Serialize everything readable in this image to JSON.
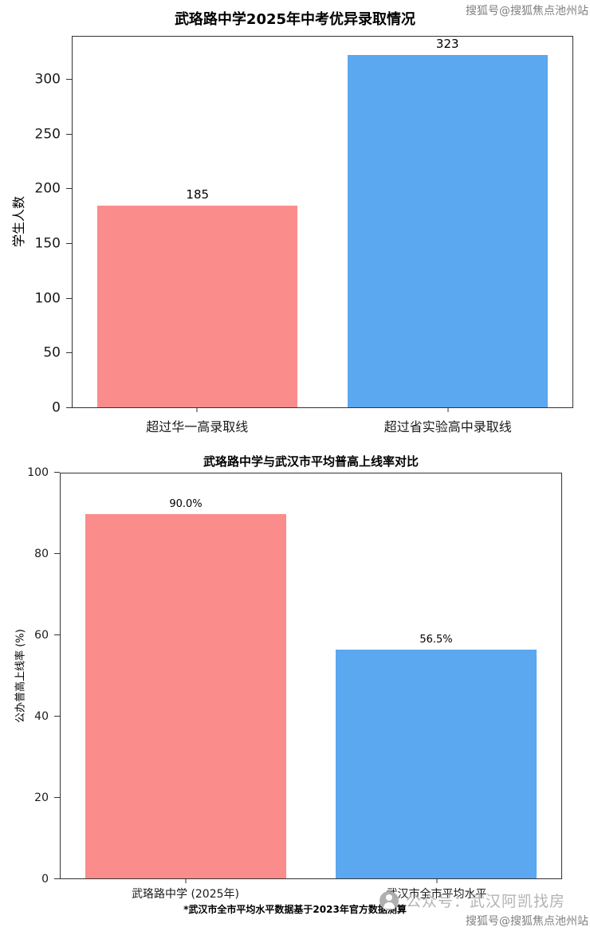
{
  "chart_data": [
    {
      "type": "bar",
      "title": "武珞路中学2025年中考优异录取情况",
      "categories": [
        "超过华一高录取线",
        "超过省实验高中录取线"
      ],
      "values": [
        185,
        323
      ],
      "bar_labels": [
        "185",
        "323"
      ],
      "colors": [
        "#fa8c8c",
        "#5ba7f0"
      ],
      "xlabel": "",
      "ylabel": "学生人数",
      "ylim": [
        0,
        340
      ],
      "yticks": [
        0,
        50,
        100,
        150,
        200,
        250,
        300
      ],
      "grid": false,
      "legend": null
    },
    {
      "type": "bar",
      "title": "武珞路中学与武汉市平均普高上线率对比",
      "categories": [
        "武珞路中学 (2025年)",
        "武汉市全市平均水平"
      ],
      "values": [
        90.0,
        56.5
      ],
      "bar_labels": [
        "90.0%",
        "56.5%"
      ],
      "colors": [
        "#fa8c8c",
        "#5ba7f0"
      ],
      "xlabel": "",
      "ylabel": "公办普高上线率 (%)",
      "ylim": [
        0,
        100
      ],
      "yticks": [
        0,
        20,
        40,
        60,
        80,
        100
      ],
      "grid": false,
      "legend": null,
      "footnote": "*武汉市全市平均水平数据基于2023年官方数据测算"
    }
  ],
  "watermarks": {
    "top_right": "搜狐号@搜狐焦点池州站",
    "bottom_right": "搜狐号@搜狐焦点池州站",
    "center_bottom": "公众号：武汉阿凯找房"
  }
}
